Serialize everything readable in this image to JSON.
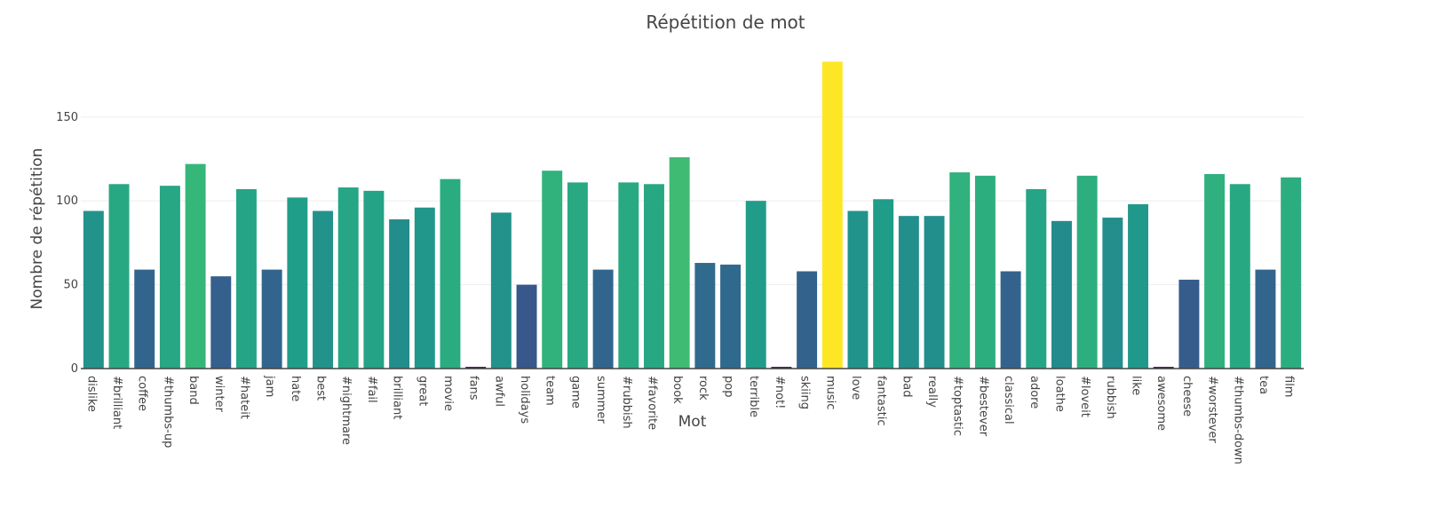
{
  "chart_data": {
    "type": "bar",
    "title": "Répétition de mot",
    "xlabel": "Mot",
    "ylabel": "Nombre de répétition",
    "ylim": [
      0,
      188
    ],
    "yticks": [
      0,
      50,
      100,
      150
    ],
    "grid": "horizontal",
    "legend": "none",
    "categories": [
      "dislike",
      "#brilliant",
      "coffee",
      "#thumbs-up",
      "band",
      "winter",
      "#hateit",
      "jam",
      "hate",
      "best",
      "#nightmare",
      "#fail",
      "brilliant",
      "great",
      "movie",
      "fans",
      "awful",
      "holidays",
      "team",
      "game",
      "summer",
      "#rubbish",
      "#favorite",
      "book",
      "rock",
      "pop",
      "terrible",
      "#not!",
      "skiing",
      "music",
      "love",
      "fantastic",
      "bad",
      "really",
      "#toptastic",
      "#bestever",
      "classical",
      "adore",
      "loathe",
      "#loveit",
      "rubbish",
      "like",
      "awesome",
      "cheese",
      "#worstever",
      "#thumbs-down",
      "tea",
      "film"
    ],
    "values": [
      94,
      110,
      59,
      109,
      122,
      55,
      107,
      59,
      102,
      94,
      108,
      106,
      89,
      96,
      113,
      1,
      93,
      50,
      118,
      111,
      59,
      111,
      110,
      126,
      63,
      62,
      100,
      1,
      58,
      183,
      94,
      101,
      91,
      91,
      117,
      115,
      58,
      107,
      88,
      115,
      90,
      98,
      1,
      53,
      116,
      110,
      59,
      114
    ],
    "colorscale": "viridis"
  }
}
